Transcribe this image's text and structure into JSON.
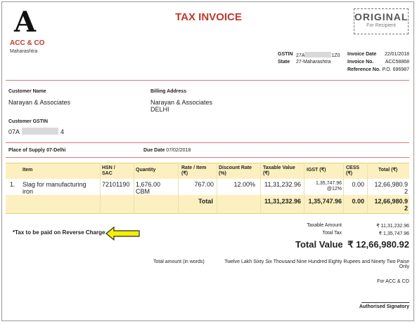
{
  "title": "TAX INVOICE",
  "stamp": {
    "main": "ORIGINAL",
    "sub": "For Recipient"
  },
  "company": {
    "logo_letter": "A",
    "name": "ACC & CO",
    "state": "Maharashtra"
  },
  "seller": {
    "gstin_label": "GSTIN",
    "gstin_prefix": "27A",
    "gstin_suffix": "1Z0",
    "state_label": "State",
    "state_value": "27-Maharashtra"
  },
  "invoice": {
    "date_label": "Invoice Date",
    "date": "22/01/2018",
    "no_label": "Invoice No.",
    "no": "ACC58868",
    "ref_label": "Reference No.",
    "ref": "P.O. 696987"
  },
  "customer": {
    "name_label": "Customer Name",
    "name": "Narayan  & Associates",
    "billing_label": "Billing Address",
    "billing_line1": "Narayan  & Associates",
    "billing_line2": "DELHI",
    "gstin_label": "Customer GSTIN",
    "gstin_prefix": "07A",
    "gstin_suffix": "4"
  },
  "supply": {
    "place_label": "Place of Supply",
    "place": "07-Delhi",
    "due_label": "Due Date",
    "due": "07/02/2018"
  },
  "table": {
    "headers": {
      "item": "Item",
      "hsn1": "HSN /",
      "hsn2": "SAC",
      "qty": "Quantity",
      "rate1": "Rate / Item",
      "rate2": "(₹)",
      "disc1": "Discount Rate",
      "disc2": "(%)",
      "taxable1": "Taxable Value",
      "taxable2": "(₹)",
      "igst": "IGST (₹)",
      "cess1": "CESS",
      "cess2": "(₹)",
      "total": "Total (₹)"
    },
    "row": {
      "num": "1.",
      "item1": "Slag for manufacturing",
      "item2": "iron",
      "hsn": "72101190",
      "qty1": "1,676.00",
      "qty2": "CBM",
      "rate": "767.00",
      "disc": "12.00%",
      "taxable": "11,31,232.96",
      "igst1": "1,35,747.96",
      "igst2": "@12%",
      "cess": "0.00",
      "total1": "12,66,980.9",
      "total2": "2"
    },
    "totals": {
      "label": "Total",
      "taxable": "11,31,232.96",
      "igst": "1,35,747.96",
      "cess": "0.00",
      "total1": "12,66,980.9",
      "total2": "2"
    }
  },
  "note": "*Tax to be paid on Reverse Charge",
  "summary": {
    "taxable_label": "Taxable Amount",
    "taxable": "₹ 11,31,232.96",
    "tax_label": "Total Tax",
    "tax": "₹ 1,35,747.96",
    "value_label": "Total Value",
    "value": "₹ 12,66,980.92"
  },
  "words": {
    "label": "Total amount (in words)",
    "text": "Twelve Lakh Sixty Six Thousand Nine Hundred Eighty Rupees and Ninety Two Paise Only"
  },
  "signature": {
    "for": "For ACC & CO",
    "auth": "Authorised Signatory"
  },
  "colors": {
    "accent": "#c0392b",
    "table_bg": "#fdf0c0",
    "arrow": "#f4f000"
  }
}
